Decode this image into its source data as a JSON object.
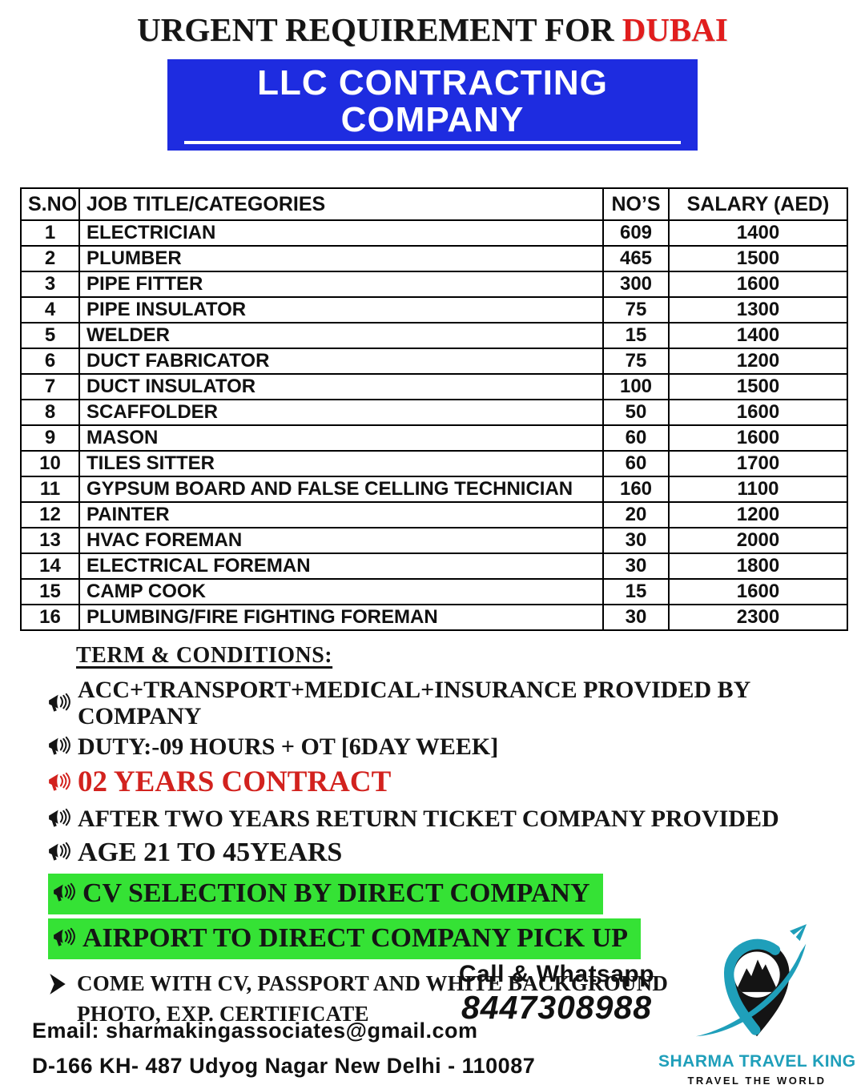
{
  "colors": {
    "banner_blue": "#1e2ce0",
    "title_red": "#e11d1d",
    "accent_red": "#d2221e",
    "green_highlight": "#35e235",
    "teal": "#1f9fba"
  },
  "header": {
    "title_black": "URGENT REQUIREMENT FOR",
    "title_red": "DUBAI",
    "banner": "LLC CONTRACTING COMPANY"
  },
  "table": {
    "headers": [
      "S.NO",
      "JOB TITLE/CATEGORIES",
      "NO’S",
      "SALARY (AED)"
    ],
    "rows": [
      [
        "1",
        "ELECTRICIAN",
        "609",
        "1400"
      ],
      [
        "2",
        "PLUMBER",
        "465",
        "1500"
      ],
      [
        "3",
        "PIPE FITTER",
        "300",
        "1600"
      ],
      [
        "4",
        "PIPE INSULATOR",
        "75",
        "1300"
      ],
      [
        "5",
        "WELDER",
        "15",
        "1400"
      ],
      [
        "6",
        "DUCT FABRICATOR",
        "75",
        "1200"
      ],
      [
        "7",
        "DUCT INSULATOR",
        "100",
        "1500"
      ],
      [
        "8",
        "SCAFFOLDER",
        "50",
        "1600"
      ],
      [
        "9",
        "MASON",
        "60",
        "1600"
      ],
      [
        "10",
        "TILES SITTER",
        "60",
        "1700"
      ],
      [
        "11",
        "GYPSUM BOARD AND FALSE CELLING TECHNICIAN",
        "160",
        "1100"
      ],
      [
        "12",
        "PAINTER",
        "20",
        "1200"
      ],
      [
        "13",
        "HVAC FOREMAN",
        "30",
        "2000"
      ],
      [
        "14",
        "ELECTRICAL FOREMAN",
        "30",
        "1800"
      ],
      [
        "15",
        "CAMP COOK",
        "15",
        "1600"
      ],
      [
        "16",
        "PLUMBING/FIRE FIGHTING FOREMAN",
        "30",
        "2300"
      ]
    ]
  },
  "terms": {
    "heading": "TERM & CONDITIONS:",
    "items": [
      {
        "text": "ACC+TRANSPORT+MEDICAL+INSURANCE PROVIDED BY COMPANY",
        "style": "normal"
      },
      {
        "text": "DUTY:-09 HOURS + OT [6DAY WEEK]",
        "style": "normal"
      },
      {
        "text": "02 YEARS CONTRACT",
        "style": "red"
      },
      {
        "text": "AFTER TWO YEARS RETURN TICKET COMPANY PROVIDED",
        "style": "normal"
      },
      {
        "text": "AGE  21 TO 45YEARS",
        "style": "large"
      },
      {
        "text": "CV SELECTION BY DIRECT COMPANY",
        "style": "highlight"
      },
      {
        "text": "AIRPORT TO DIRECT COMPANY PICK UP",
        "style": "highlight"
      }
    ],
    "note": "COME WITH CV, PASSPORT AND WHITE BACKGROUND PHOTO, EXP. CERTIFICATE"
  },
  "contact": {
    "call_label": "Call & Whatsapp",
    "phone": "8447308988",
    "email": "Email: sharmakingassociates@gmail.com",
    "address": "D-166 KH- 487 Udyog Nagar New Delhi - 110087"
  },
  "logo": {
    "name": "SHARMA TRAVEL KING",
    "tagline": "TRAVEL THE WORLD",
    "icons": [
      "location-pin-icon",
      "mountain-icon",
      "airplane-icon",
      "swoosh-icon"
    ]
  }
}
